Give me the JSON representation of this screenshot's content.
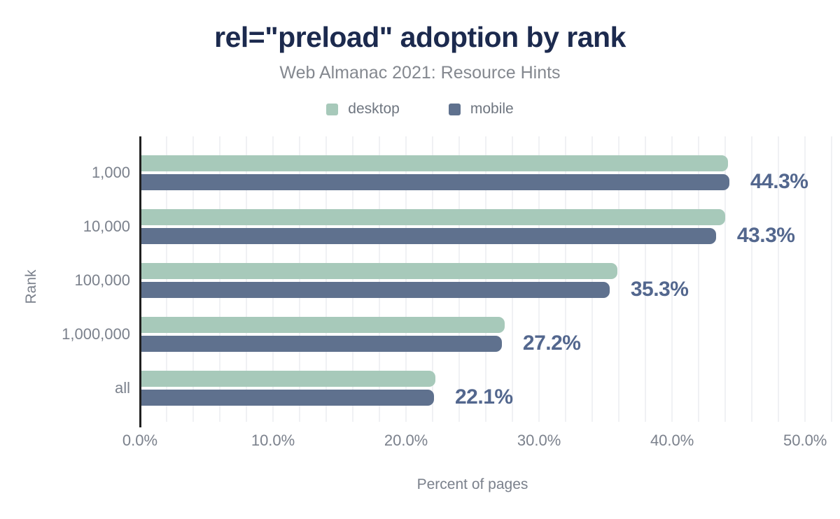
{
  "colors": {
    "background": "#ffffff",
    "title": "#1c2a4e",
    "subtitle": "#84888f",
    "axis_text": "#7b818c",
    "annotation": "#53678e",
    "axis_line": "#212121",
    "gridline": "#f0f1f4",
    "desktop": "#a7c9ba",
    "mobile": "#5f718e"
  },
  "chart_data": {
    "type": "bar",
    "orientation": "horizontal",
    "title": "rel=\"preload\" adoption by rank",
    "subtitle": "Web Almanac 2021: Resource Hints",
    "xlabel": "Percent of pages",
    "ylabel": "Rank",
    "categories": [
      "1,000",
      "10,000",
      "100,000",
      "1,000,000",
      "all"
    ],
    "series": [
      {
        "name": "desktop",
        "color": "#a7c9ba",
        "values": [
          44.2,
          44.0,
          35.9,
          27.4,
          22.2
        ]
      },
      {
        "name": "mobile",
        "color": "#5f718e",
        "values": [
          44.3,
          43.3,
          35.3,
          27.2,
          22.1
        ]
      }
    ],
    "value_labels": {
      "labeled_series": "mobile",
      "texts": [
        "44.3%",
        "43.3%",
        "35.3%",
        "27.2%",
        "22.1%"
      ]
    },
    "x_ticks": [
      {
        "value": 0,
        "label": "0.0%"
      },
      {
        "value": 10,
        "label": "10.0%"
      },
      {
        "value": 20,
        "label": "20.0%"
      },
      {
        "value": 30,
        "label": "30.0%"
      },
      {
        "value": 40,
        "label": "40.0%"
      },
      {
        "value": 50,
        "label": "50.0%"
      }
    ],
    "xlim": [
      0,
      52.2
    ],
    "grid": {
      "on": true,
      "step": 2,
      "max": 52
    },
    "legend_position": "top"
  }
}
